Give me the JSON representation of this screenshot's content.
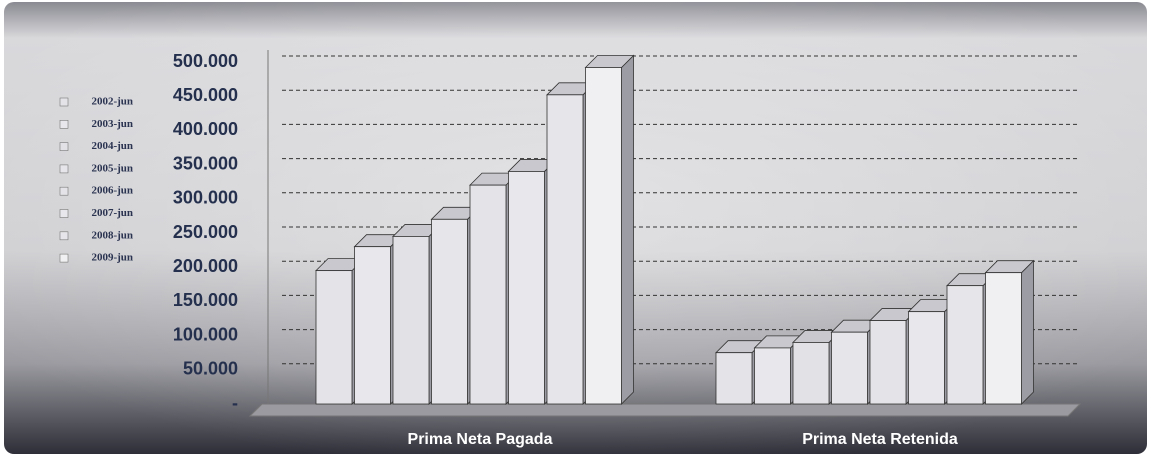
{
  "chart_data": {
    "type": "bar3d",
    "categories": [
      "Prima Neta Pagada",
      "Prima Neta Retenida"
    ],
    "series": [
      {
        "name": "2002-jun",
        "color": "#e4e4e8",
        "values": [
          195000,
          75000
        ]
      },
      {
        "name": "2003-jun",
        "color": "#e8e8ec",
        "values": [
          230000,
          82000
        ]
      },
      {
        "name": "2004-jun",
        "color": "#e2e2e6",
        "values": [
          245000,
          90000
        ]
      },
      {
        "name": "2005-jun",
        "color": "#e6e6ea",
        "values": [
          270000,
          105000
        ]
      },
      {
        "name": "2006-jun",
        "color": "#e4e4e8",
        "values": [
          320000,
          122000
        ]
      },
      {
        "name": "2007-jun",
        "color": "#e8e8ec",
        "values": [
          340000,
          135000
        ]
      },
      {
        "name": "2008-jun",
        "color": "#e6e6ea",
        "values": [
          452000,
          173000
        ]
      },
      {
        "name": "2009-jun",
        "color": "#f0f0f2",
        "values": [
          492000,
          192000
        ]
      }
    ],
    "ylim": [
      0,
      500000
    ],
    "yticks": [
      {
        "value": 0,
        "label": "-"
      },
      {
        "value": 50000,
        "label": "50.000"
      },
      {
        "value": 100000,
        "label": "100.000"
      },
      {
        "value": 150000,
        "label": "150.000"
      },
      {
        "value": 200000,
        "label": "200.000"
      },
      {
        "value": 250000,
        "label": "250.000"
      },
      {
        "value": 300000,
        "label": "300.000"
      },
      {
        "value": 350000,
        "label": "350.000"
      },
      {
        "value": 400000,
        "label": "400.000"
      },
      {
        "value": 450000,
        "label": "450.000"
      },
      {
        "value": 500000,
        "label": "500.000"
      }
    ],
    "grid": true,
    "legend": "left"
  }
}
